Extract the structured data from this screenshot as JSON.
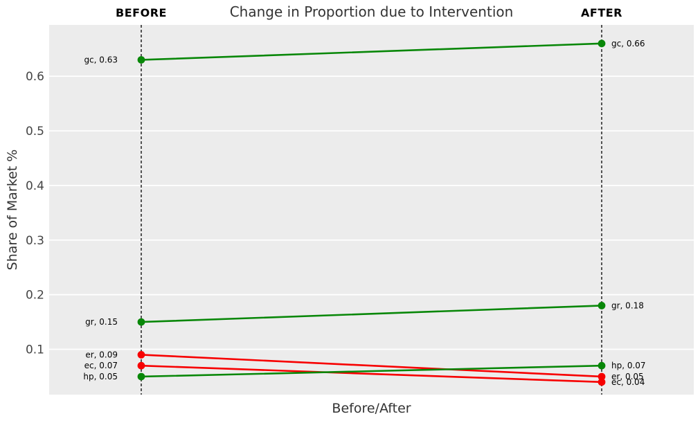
{
  "figure": {
    "kind": "slope-chart-figure"
  },
  "chart_data": {
    "type": "line",
    "variant": "slopegraph",
    "title": "Change in Proportion due to Intervention",
    "xlabel": "Before/After",
    "ylabel": "Share of Market %",
    "x_categories": [
      "BEFORE",
      "AFTER"
    ],
    "yticks": [
      {
        "value": 0.1,
        "label": "0.1"
      },
      {
        "value": 0.2,
        "label": "0.2"
      },
      {
        "value": 0.3,
        "label": "0.3"
      },
      {
        "value": 0.4,
        "label": "0.4"
      },
      {
        "value": 0.5,
        "label": "0.5"
      },
      {
        "value": 0.6,
        "label": "0.6"
      }
    ],
    "ylim": [
      0.017,
      0.694
    ],
    "grid": "horizontal",
    "legend": "none",
    "series": [
      {
        "name": "gc",
        "before": 0.63,
        "after": 0.66,
        "direction": "increase",
        "color": "#088708",
        "label_before": "gc, 0.63",
        "label_after": "gc, 0.66"
      },
      {
        "name": "gr",
        "before": 0.15,
        "after": 0.18,
        "direction": "increase",
        "color": "#088708",
        "label_before": "gr, 0.15",
        "label_after": "gr, 0.18"
      },
      {
        "name": "er",
        "before": 0.09,
        "after": 0.05,
        "direction": "decrease",
        "color": "#f70000",
        "label_before": "er, 0.09",
        "label_after": "er, 0.05"
      },
      {
        "name": "ec",
        "before": 0.07,
        "after": 0.04,
        "direction": "decrease",
        "color": "#f70000",
        "label_before": "ec, 0.07",
        "label_after": "ec, 0.04"
      },
      {
        "name": "hp",
        "before": 0.05,
        "after": 0.07,
        "direction": "increase",
        "color": "#088708",
        "label_before": "hp, 0.05",
        "label_after": "hp, 0.07"
      }
    ],
    "colors": {
      "increase": "#088708",
      "decrease": "#f70000",
      "figure_background": "#ffffff",
      "plot_background": "#ececec",
      "gridline": "#ffffff",
      "dashed_line": "#000000",
      "title_text": "#333333",
      "axis_label_text": "#333333",
      "tick_text": "#444444",
      "annotation_text": "#000000"
    }
  }
}
